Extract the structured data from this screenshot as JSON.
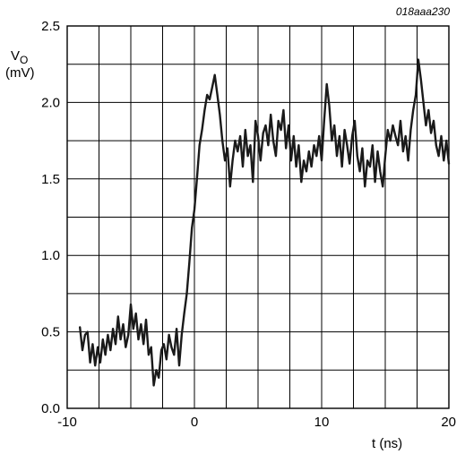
{
  "figure_code": "018aaa230",
  "colors": {
    "grid": "#000000",
    "trace": "#1a1a1a",
    "background": "#ffffff"
  },
  "chart_data": {
    "type": "line",
    "title": "",
    "xlabel": "t (ns)",
    "ylabel": {
      "main": "V",
      "sub": "O",
      "unit": "(mV)"
    },
    "xlim": [
      -10,
      20
    ],
    "ylim": [
      0,
      2.5
    ],
    "x_ticks": [
      -10,
      0,
      10,
      20
    ],
    "x_tick_labels": [
      "-10",
      "0",
      "10",
      "20"
    ],
    "y_ticks": [
      0,
      0.5,
      1,
      1.5,
      2,
      2.5
    ],
    "y_tick_labels": [
      "0.0",
      "0.5",
      "1.0",
      "1.5",
      "2.0",
      "2.5"
    ],
    "grid": true,
    "grid_x_step": 2.5,
    "grid_y_step": 0.25,
    "legend": "none",
    "series": [
      {
        "x": [
          -9.0,
          -8.8,
          -8.6,
          -8.4,
          -8.2,
          -8.0,
          -7.8,
          -7.6,
          -7.4,
          -7.2,
          -7.0,
          -6.8,
          -6.6,
          -6.4,
          -6.2,
          -6.0,
          -5.8,
          -5.6,
          -5.4,
          -5.2,
          -5.0,
          -4.8,
          -4.6,
          -4.4,
          -4.2,
          -4.0,
          -3.8,
          -3.6,
          -3.4,
          -3.2,
          -3.0,
          -2.8,
          -2.6,
          -2.4,
          -2.2,
          -2.0,
          -1.8,
          -1.6,
          -1.4,
          -1.2,
          -1.0,
          -0.8,
          -0.6,
          -0.4,
          -0.2,
          0.0,
          0.2,
          0.4,
          0.6,
          0.8,
          1.0,
          1.2,
          1.4,
          1.6,
          1.8,
          2.0,
          2.2,
          2.4,
          2.6,
          2.8,
          3.0,
          3.2,
          3.4,
          3.6,
          3.8,
          4.0,
          4.2,
          4.4,
          4.6,
          4.8,
          5.0,
          5.2,
          5.4,
          5.6,
          5.8,
          6.0,
          6.2,
          6.4,
          6.6,
          6.8,
          7.0,
          7.2,
          7.4,
          7.6,
          7.8,
          8.0,
          8.2,
          8.4,
          8.6,
          8.8,
          9.0,
          9.2,
          9.4,
          9.6,
          9.8,
          10.0,
          10.2,
          10.4,
          10.6,
          10.8,
          11.0,
          11.2,
          11.4,
          11.6,
          11.8,
          12.0,
          12.2,
          12.4,
          12.6,
          12.8,
          13.0,
          13.2,
          13.4,
          13.6,
          13.8,
          14.0,
          14.2,
          14.4,
          14.6,
          14.8,
          15.0,
          15.2,
          15.4,
          15.6,
          15.8,
          16.0,
          16.2,
          16.4,
          16.6,
          16.8,
          17.0,
          17.2,
          17.4,
          17.6,
          17.8,
          18.0,
          18.2,
          18.4,
          18.6,
          18.8,
          19.0,
          19.2,
          19.4,
          19.6,
          19.8,
          20.0
        ],
        "y": [
          0.53,
          0.38,
          0.48,
          0.5,
          0.3,
          0.42,
          0.28,
          0.4,
          0.3,
          0.45,
          0.35,
          0.48,
          0.38,
          0.52,
          0.42,
          0.6,
          0.45,
          0.55,
          0.4,
          0.48,
          0.68,
          0.52,
          0.62,
          0.45,
          0.55,
          0.42,
          0.58,
          0.35,
          0.4,
          0.15,
          0.25,
          0.2,
          0.38,
          0.42,
          0.32,
          0.48,
          0.4,
          0.35,
          0.52,
          0.28,
          0.48,
          0.62,
          0.75,
          0.95,
          1.18,
          1.3,
          1.5,
          1.72,
          1.82,
          1.95,
          2.05,
          2.02,
          2.1,
          2.18,
          2.05,
          1.92,
          1.75,
          1.62,
          1.7,
          1.45,
          1.62,
          1.75,
          1.68,
          1.78,
          1.58,
          1.82,
          1.65,
          1.72,
          1.48,
          1.88,
          1.78,
          1.62,
          1.8,
          1.85,
          1.72,
          1.92,
          1.75,
          1.65,
          1.88,
          1.82,
          1.95,
          1.7,
          1.85,
          1.62,
          1.78,
          1.58,
          1.72,
          1.48,
          1.62,
          1.55,
          1.68,
          1.58,
          1.72,
          1.65,
          1.78,
          1.62,
          1.88,
          2.12,
          1.98,
          1.75,
          1.85,
          1.65,
          1.78,
          1.58,
          1.82,
          1.72,
          1.6,
          1.78,
          1.88,
          1.65,
          1.55,
          1.7,
          1.45,
          1.62,
          1.58,
          1.72,
          1.48,
          1.68,
          1.55,
          1.45,
          1.65,
          1.82,
          1.75,
          1.85,
          1.78,
          1.72,
          1.88,
          1.68,
          1.78,
          1.62,
          1.82,
          1.95,
          2.05,
          2.28,
          2.15,
          2.0,
          1.85,
          1.95,
          1.8,
          1.88,
          1.72,
          1.65,
          1.78,
          1.62,
          1.75,
          1.6
        ]
      }
    ]
  }
}
